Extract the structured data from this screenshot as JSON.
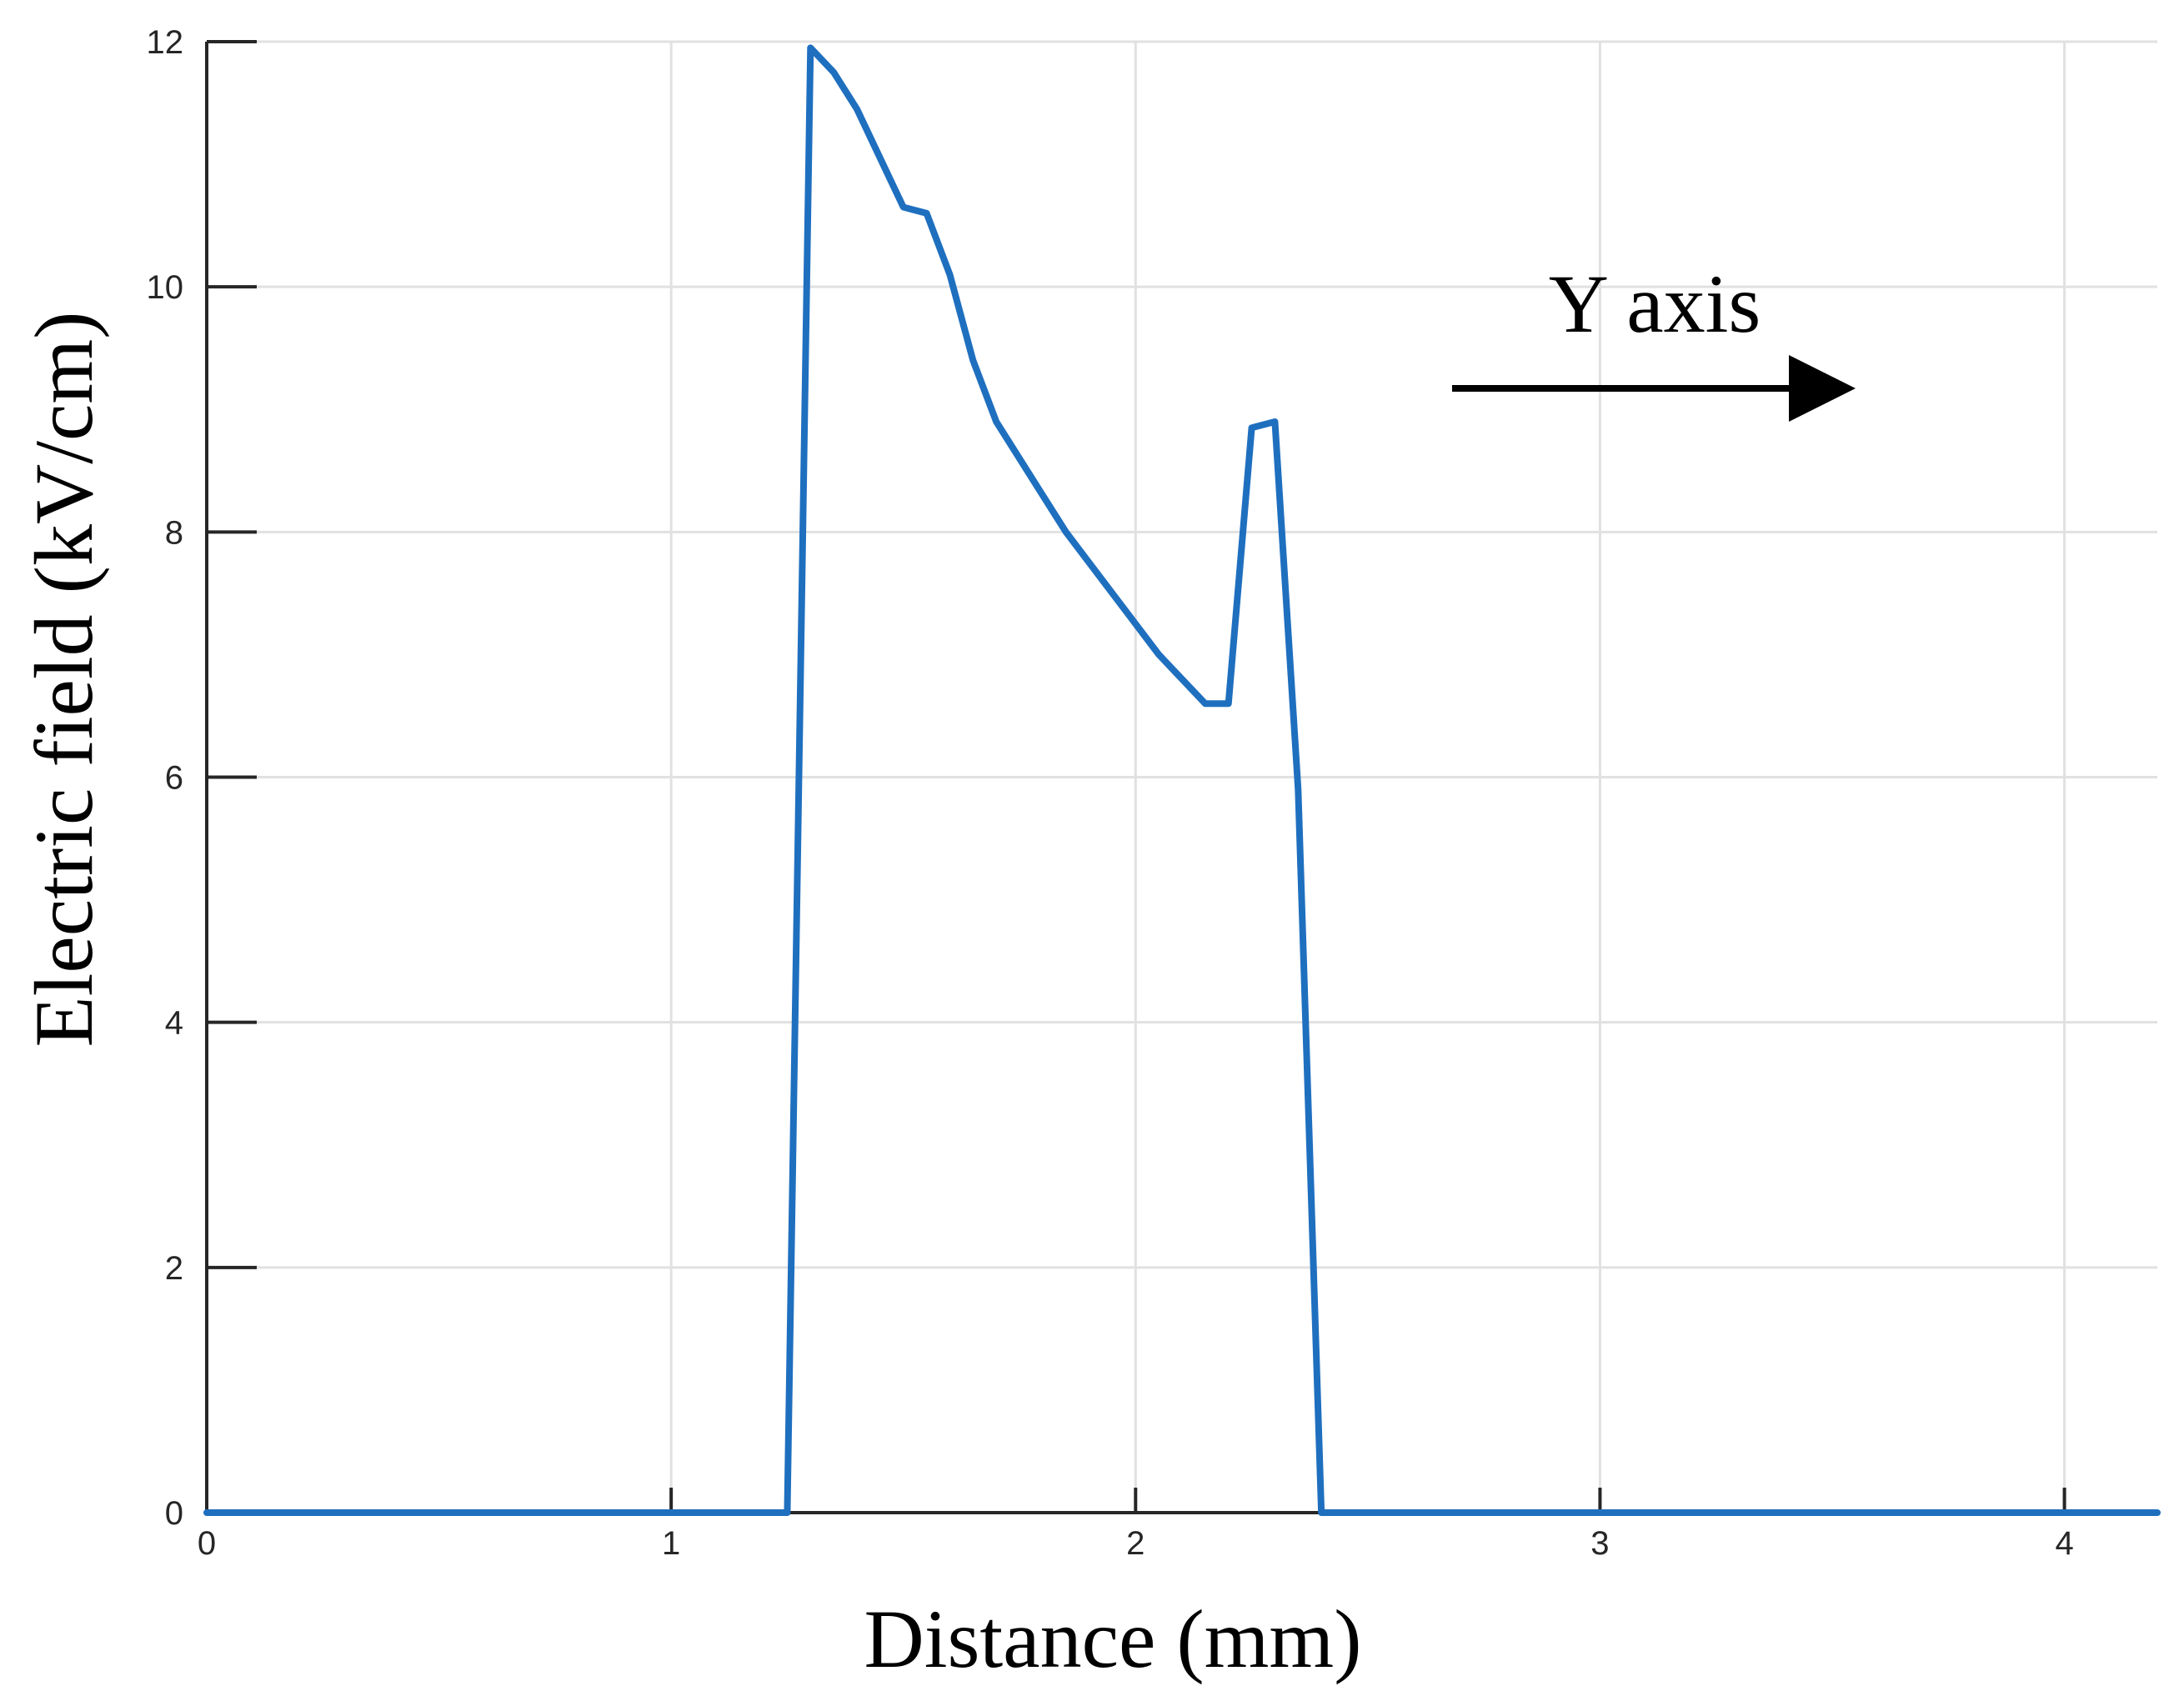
{
  "chart_data": {
    "type": "line",
    "title": "",
    "xlabel": "Distance (mm)",
    "ylabel": "Electric field (kV/cm)",
    "xlim": [
      0,
      4.2
    ],
    "ylim": [
      0,
      12
    ],
    "xticks": [
      0,
      1,
      2,
      3,
      4
    ],
    "yticks": [
      0,
      2,
      4,
      6,
      8,
      10,
      12
    ],
    "xtick_labels": [
      "0",
      "1",
      "2",
      "3",
      "4"
    ],
    "ytick_labels": [
      "0",
      "2",
      "4",
      "6",
      "8",
      "10",
      "12"
    ],
    "grid": true,
    "legend": "none",
    "series": [
      {
        "color": "#1f6fbf",
        "x": [
          0,
          1.25,
          1.3,
          1.35,
          1.4,
          1.45,
          1.5,
          1.55,
          1.6,
          1.65,
          1.7,
          1.75,
          1.8,
          1.85,
          1.9,
          1.95,
          2.0,
          2.05,
          2.1,
          2.15,
          2.2,
          2.25,
          2.3,
          2.35,
          2.4,
          4.2
        ],
        "values": [
          0,
          0,
          11.95,
          11.75,
          11.45,
          11.05,
          10.65,
          10.6,
          10.1,
          9.4,
          8.9,
          8.6,
          8.3,
          8.0,
          7.75,
          7.5,
          7.25,
          7.0,
          6.8,
          6.6,
          6.6,
          8.85,
          8.9,
          5.9,
          0,
          0
        ]
      }
    ],
    "annotations": [
      {
        "text": "Y axis",
        "arrow_direction": "right"
      }
    ]
  }
}
